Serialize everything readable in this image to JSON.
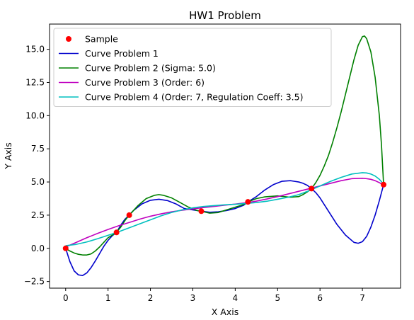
{
  "chart_data": {
    "type": "line",
    "title": "HW1 Problem",
    "xlabel": "X Axis",
    "ylabel": "Y Axis",
    "xlim": [
      -0.38,
      7.9
    ],
    "ylim": [
      -3.0,
      16.9
    ],
    "xticks": [
      0,
      1,
      2,
      3,
      4,
      5,
      6,
      7
    ],
    "xtick_labels": [
      "0",
      "1",
      "2",
      "3",
      "4",
      "5",
      "6",
      "7"
    ],
    "yticks": [
      -2.5,
      0.0,
      2.5,
      5.0,
      7.5,
      10.0,
      12.5,
      15.0
    ],
    "ytick_labels": [
      "−2.5",
      "0.0",
      "2.5",
      "5.0",
      "7.5",
      "10.0",
      "12.5",
      "15.0"
    ],
    "grid": false,
    "legend_position": "top-left",
    "samples": {
      "name": "Sample",
      "color": "#ff0000",
      "x": [
        0.0,
        1.2,
        1.5,
        3.2,
        4.3,
        5.8,
        7.5
      ],
      "y": [
        0.0,
        1.2,
        2.5,
        2.8,
        3.5,
        4.5,
        4.8
      ]
    },
    "series": [
      {
        "name": "Curve Problem 1",
        "color": "#0000cc",
        "x": [
          0.0,
          0.1,
          0.2,
          0.3,
          0.4,
          0.5,
          0.6,
          0.7,
          0.8,
          0.9,
          1.0,
          1.1,
          1.2,
          1.3,
          1.4,
          1.5,
          1.6,
          1.8,
          2.0,
          2.2,
          2.4,
          2.6,
          2.8,
          3.0,
          3.2,
          3.4,
          3.6,
          3.8,
          4.0,
          4.2,
          4.3,
          4.5,
          4.7,
          4.9,
          5.1,
          5.3,
          5.4,
          5.5,
          5.6,
          5.7,
          5.8,
          5.9,
          6.0,
          6.2,
          6.4,
          6.6,
          6.8,
          6.9,
          7.0,
          7.1,
          7.2,
          7.3,
          7.4,
          7.5
        ],
        "y": [
          0.0,
          -1.0,
          -1.7,
          -2.0,
          -2.05,
          -1.85,
          -1.45,
          -0.95,
          -0.4,
          0.15,
          0.6,
          0.95,
          1.2,
          1.75,
          2.2,
          2.5,
          2.85,
          3.35,
          3.62,
          3.7,
          3.6,
          3.35,
          3.0,
          2.9,
          2.8,
          2.72,
          2.75,
          2.85,
          3.0,
          3.25,
          3.5,
          3.9,
          4.4,
          4.8,
          5.05,
          5.1,
          5.05,
          5.0,
          4.9,
          4.75,
          4.5,
          4.2,
          3.8,
          2.8,
          1.8,
          1.0,
          0.45,
          0.38,
          0.5,
          0.9,
          1.6,
          2.5,
          3.6,
          4.8
        ]
      },
      {
        "name": "Curve Problem 2 (Sigma: 5.0)",
        "color": "#008000",
        "x": [
          0.0,
          0.1,
          0.2,
          0.3,
          0.4,
          0.5,
          0.6,
          0.7,
          0.8,
          0.9,
          1.0,
          1.1,
          1.2,
          1.3,
          1.4,
          1.5,
          1.7,
          1.9,
          2.1,
          2.2,
          2.3,
          2.5,
          2.7,
          2.9,
          3.1,
          3.2,
          3.4,
          3.6,
          3.8,
          4.0,
          4.2,
          4.3,
          4.5,
          4.7,
          5.0,
          5.3,
          5.5,
          5.6,
          5.7,
          5.8,
          5.9,
          6.0,
          6.1,
          6.2,
          6.3,
          6.4,
          6.5,
          6.6,
          6.7,
          6.8,
          6.9,
          7.0,
          7.05,
          7.1,
          7.2,
          7.3,
          7.4,
          7.45,
          7.5
        ],
        "y": [
          0.0,
          -0.2,
          -0.35,
          -0.45,
          -0.5,
          -0.5,
          -0.42,
          -0.2,
          0.1,
          0.45,
          0.8,
          1.0,
          1.2,
          1.6,
          2.1,
          2.5,
          3.2,
          3.75,
          4.0,
          4.05,
          4.0,
          3.8,
          3.45,
          3.1,
          2.85,
          2.8,
          2.65,
          2.7,
          2.9,
          3.1,
          3.3,
          3.5,
          3.75,
          3.88,
          3.95,
          3.85,
          3.9,
          4.05,
          4.25,
          4.5,
          4.95,
          5.5,
          6.2,
          7.0,
          8.0,
          9.1,
          10.3,
          11.6,
          12.9,
          14.2,
          15.3,
          15.95,
          16.0,
          15.8,
          14.8,
          12.9,
          10.0,
          7.8,
          4.8
        ]
      },
      {
        "name": "Curve Problem 3 (Order: 6)",
        "color": "#bf00bf",
        "x": [
          0.0,
          0.25,
          0.5,
          0.75,
          1.0,
          1.25,
          1.5,
          1.75,
          2.0,
          2.25,
          2.5,
          2.75,
          3.0,
          3.25,
          3.5,
          3.75,
          4.0,
          4.25,
          4.5,
          4.75,
          5.0,
          5.25,
          5.5,
          5.75,
          6.0,
          6.25,
          6.5,
          6.75,
          7.0,
          7.1,
          7.2,
          7.3,
          7.4,
          7.5
        ],
        "y": [
          0.1,
          0.45,
          0.8,
          1.12,
          1.42,
          1.7,
          1.95,
          2.2,
          2.42,
          2.6,
          2.75,
          2.87,
          2.97,
          3.07,
          3.16,
          3.25,
          3.33,
          3.43,
          3.56,
          3.72,
          3.9,
          4.1,
          4.3,
          4.5,
          4.7,
          4.9,
          5.1,
          5.25,
          5.28,
          5.25,
          5.2,
          5.1,
          4.95,
          4.75
        ]
      },
      {
        "name": "Curve Problem 4 (Order: 7, Regulation Coeff: 3.5)",
        "color": "#00bfbf",
        "x": [
          0.0,
          0.25,
          0.5,
          0.75,
          1.0,
          1.25,
          1.5,
          1.75,
          2.0,
          2.25,
          2.5,
          2.75,
          3.0,
          3.25,
          3.5,
          3.75,
          4.0,
          4.25,
          4.5,
          4.75,
          5.0,
          5.25,
          5.5,
          5.75,
          6.0,
          6.25,
          6.5,
          6.75,
          7.0,
          7.1,
          7.2,
          7.3,
          7.4,
          7.5
        ],
        "y": [
          0.2,
          0.3,
          0.48,
          0.72,
          0.98,
          1.25,
          1.55,
          1.85,
          2.15,
          2.45,
          2.7,
          2.9,
          3.05,
          3.15,
          3.22,
          3.28,
          3.32,
          3.38,
          3.45,
          3.55,
          3.7,
          3.85,
          4.05,
          4.35,
          4.7,
          5.05,
          5.35,
          5.6,
          5.7,
          5.68,
          5.6,
          5.45,
          5.2,
          4.85
        ]
      }
    ]
  }
}
